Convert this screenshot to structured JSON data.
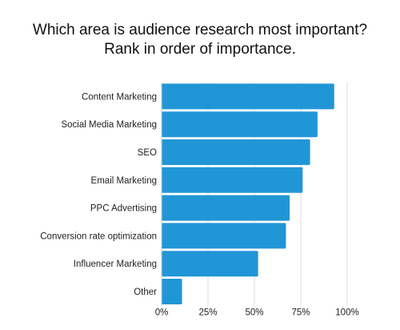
{
  "chart_data": {
    "type": "bar",
    "orientation": "horizontal",
    "title_lines": [
      "Which area is audience research most important?",
      "Rank in order of importance."
    ],
    "categories": [
      "Content Marketing",
      "Social Media Marketing",
      "SEO",
      "Email Marketing",
      "PPC Advertising",
      "Conversion rate optimization",
      "Influencer Marketing",
      "Other"
    ],
    "values": [
      93,
      84,
      80,
      76,
      69,
      67,
      52,
      11
    ],
    "xlim": [
      0,
      100
    ],
    "xticks": [
      0,
      25,
      50,
      75,
      100
    ],
    "xtick_labels": [
      "0%",
      "25%",
      "50%",
      "75%",
      "100%"
    ],
    "grid": "vertical",
    "bar_color": "#2196d6",
    "grid_color": "#dddddd",
    "xlabel": "",
    "ylabel": ""
  }
}
